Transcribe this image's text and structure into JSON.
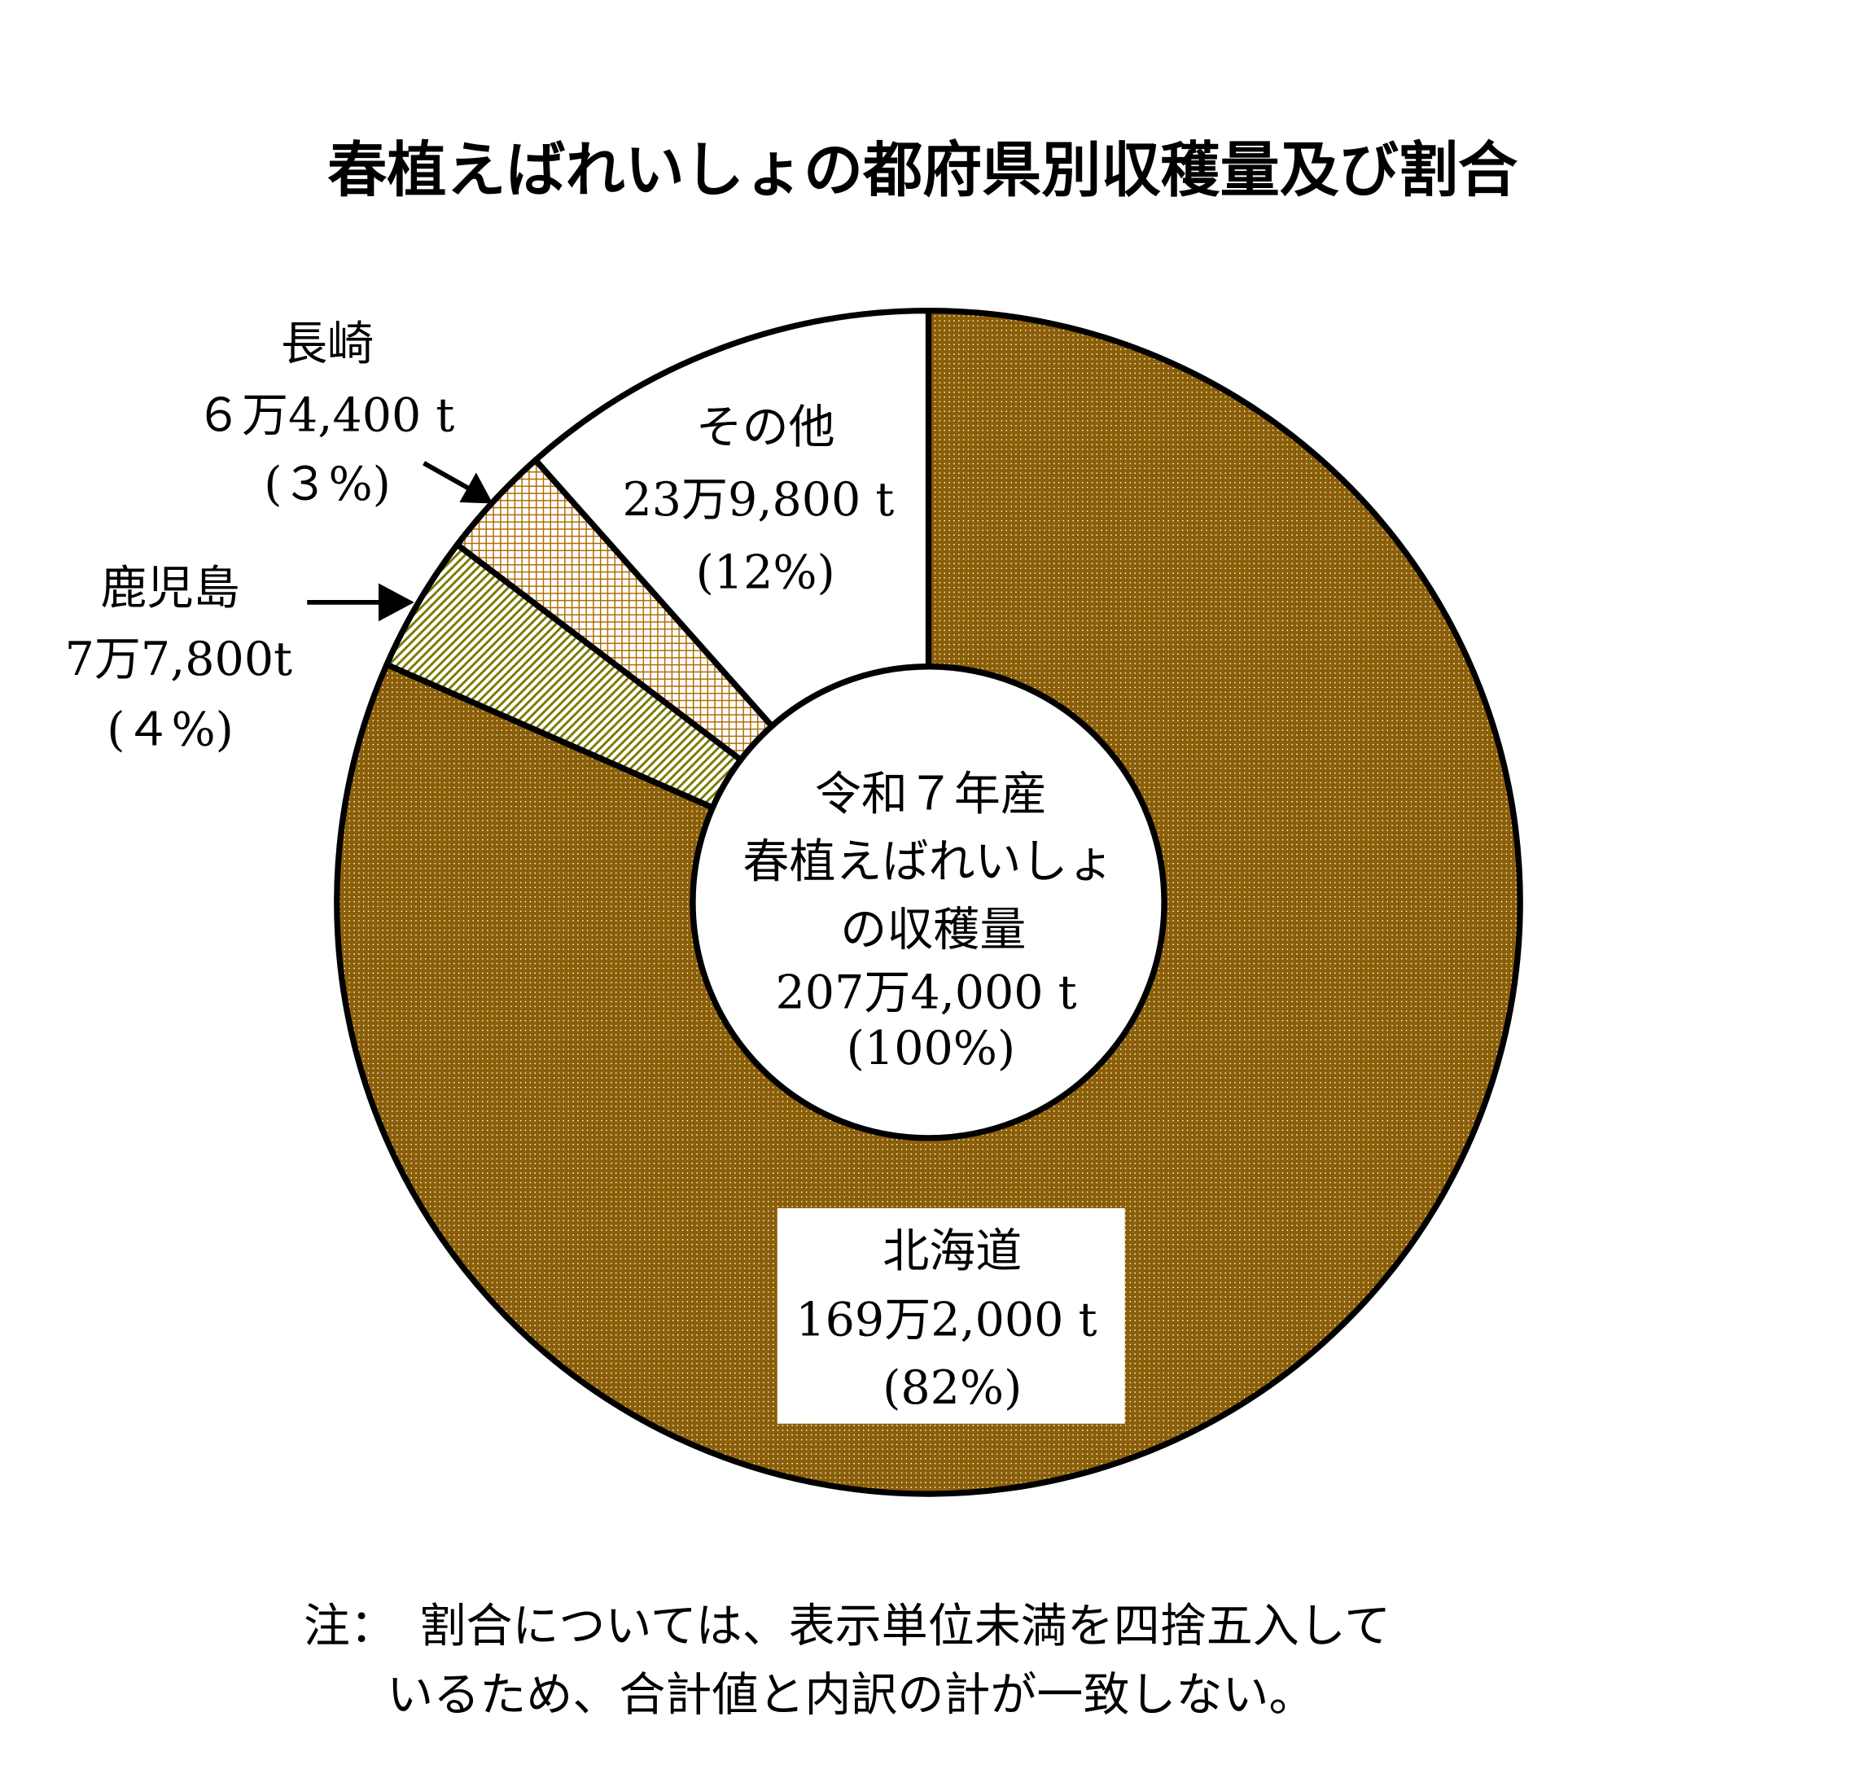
{
  "chart_data": {
    "type": "pie",
    "variant": "donut",
    "title": "春植えばれいしょの都府県別収穫量及び割合",
    "unit": "t",
    "start": "top, clockwise",
    "slices": [
      {
        "name": "北海道",
        "value": 1692000,
        "value_label": "169万2,000 t",
        "percent_label": "(82%)",
        "color": "#8B5E08",
        "pattern": "dots"
      },
      {
        "name": "鹿児島",
        "value": 77800,
        "value_label": "7万7,800t",
        "percent_label": "(４%)",
        "color": "#7A7A00",
        "pattern": "diagonal-stripes"
      },
      {
        "name": "長崎",
        "value": 64400,
        "value_label": "６万4,400 t",
        "percent_label": "(３%)",
        "color": "#B06A00",
        "pattern": "grid"
      },
      {
        "name": "その他",
        "value": 239800,
        "value_label": "23万9,800 t",
        "percent_label": "(12%)",
        "color": "#FFFFFF",
        "pattern": "none"
      }
    ],
    "center": {
      "lines": [
        "令和７年産",
        "春植えばれいしょ",
        "の収穫量",
        "207万4,000 t",
        "(100%)"
      ]
    },
    "legend": "none"
  },
  "note": {
    "line1": "注：　割合については、表示単位未満を四捨五入して",
    "line2": "いるため、合計値と内訳の計が一致しない。"
  }
}
